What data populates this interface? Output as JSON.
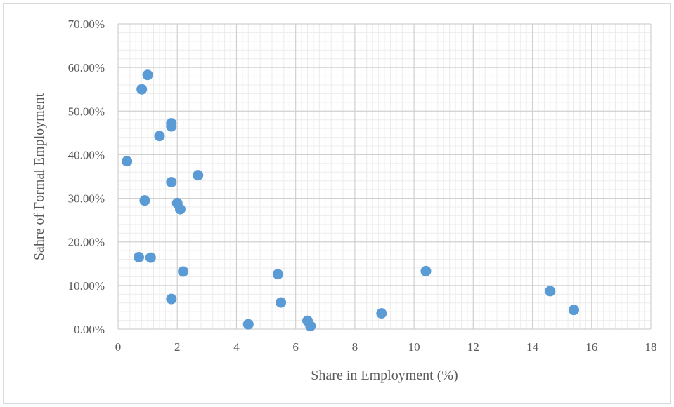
{
  "chart_data": {
    "type": "scatter",
    "xlabel": "Share in Employment (%)",
    "ylabel": "Sahre of Formal Employment",
    "xlim": [
      0,
      18
    ],
    "ylim": [
      0,
      0.7
    ],
    "x_ticks": [
      "0",
      "2",
      "4",
      "6",
      "8",
      "10",
      "12",
      "14",
      "16",
      "18"
    ],
    "y_ticks": [
      "0.00%",
      "10.00%",
      "20.00%",
      "30.00%",
      "40.00%",
      "50.00%",
      "60.00%",
      "70.00%"
    ],
    "grid": "major and minor",
    "legend": "none",
    "marker_color": "#5b9bd5",
    "points": [
      {
        "x": 0.3,
        "y": 0.385
      },
      {
        "x": 0.7,
        "y": 0.165
      },
      {
        "x": 0.8,
        "y": 0.55
      },
      {
        "x": 0.9,
        "y": 0.295
      },
      {
        "x": 1.0,
        "y": 0.583
      },
      {
        "x": 1.1,
        "y": 0.164
      },
      {
        "x": 1.4,
        "y": 0.443
      },
      {
        "x": 1.8,
        "y": 0.472
      },
      {
        "x": 1.8,
        "y": 0.465
      },
      {
        "x": 1.8,
        "y": 0.337
      },
      {
        "x": 1.8,
        "y": 0.069
      },
      {
        "x": 2.0,
        "y": 0.289
      },
      {
        "x": 2.1,
        "y": 0.275
      },
      {
        "x": 2.2,
        "y": 0.132
      },
      {
        "x": 2.7,
        "y": 0.353
      },
      {
        "x": 4.4,
        "y": 0.011
      },
      {
        "x": 5.4,
        "y": 0.126
      },
      {
        "x": 5.5,
        "y": 0.061
      },
      {
        "x": 6.4,
        "y": 0.019
      },
      {
        "x": 6.5,
        "y": 0.007
      },
      {
        "x": 8.9,
        "y": 0.036
      },
      {
        "x": 10.4,
        "y": 0.133
      },
      {
        "x": 14.6,
        "y": 0.087
      },
      {
        "x": 15.4,
        "y": 0.044
      }
    ]
  }
}
